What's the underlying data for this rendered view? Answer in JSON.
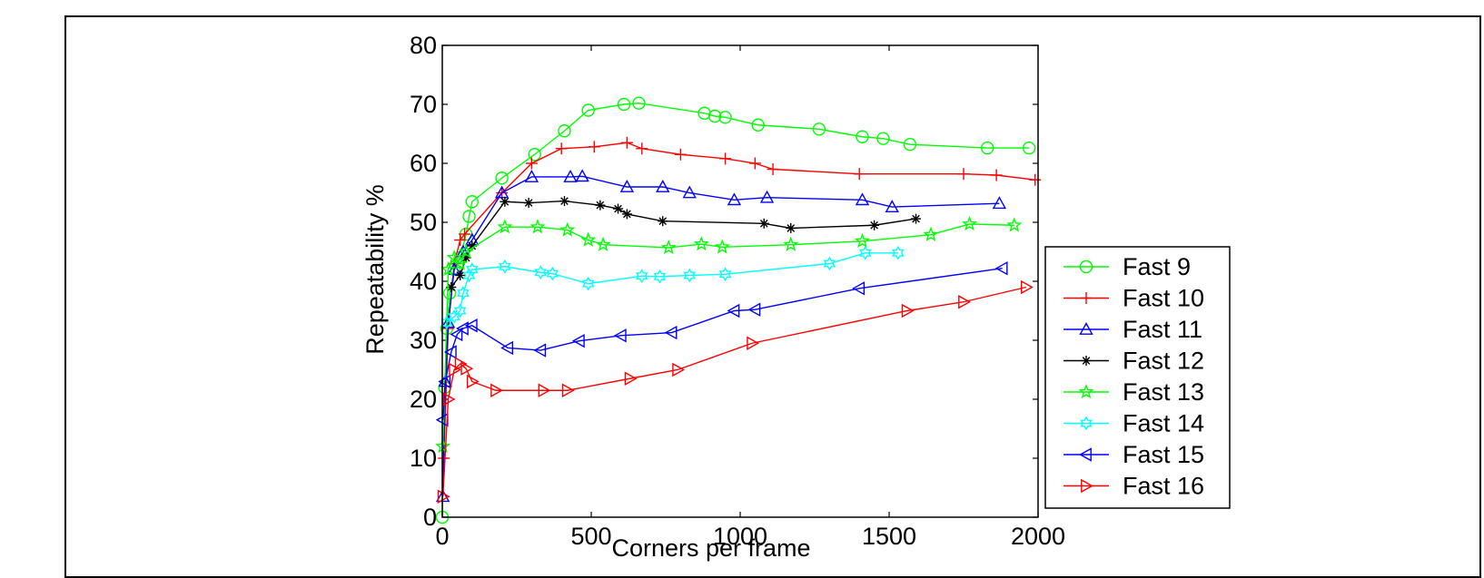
{
  "chart_data": {
    "type": "line",
    "title": "",
    "xlabel": "Corners per frame",
    "ylabel": "Repeatability %",
    "xlim": [
      0,
      2000
    ],
    "ylim": [
      0,
      80
    ],
    "xticks": [
      "0",
      "500",
      "1000",
      "1500",
      "2000"
    ],
    "yticks": [
      "0",
      "10",
      "20",
      "30",
      "40",
      "50",
      "60",
      "70",
      "80"
    ],
    "grid": false,
    "legend_position": "right-middle",
    "series": [
      {
        "name": "Fast 9",
        "color": "#00ff00",
        "marker": "circle",
        "points": [
          [
            0,
            0
          ],
          [
            8,
            22
          ],
          [
            15,
            32
          ],
          [
            25,
            38
          ],
          [
            40,
            42
          ],
          [
            60,
            44
          ],
          [
            80,
            48
          ],
          [
            90,
            51
          ],
          [
            100,
            53.5
          ],
          [
            200,
            57.5
          ],
          [
            310,
            61.5
          ],
          [
            410,
            65.5
          ],
          [
            490,
            69
          ],
          [
            610,
            70
          ],
          [
            660,
            70.2
          ],
          [
            880,
            68.5
          ],
          [
            915,
            68
          ],
          [
            950,
            67.8
          ],
          [
            1060,
            66.5
          ],
          [
            1265,
            65.8
          ],
          [
            1410,
            64.5
          ],
          [
            1480,
            64.2
          ],
          [
            1570,
            63.2
          ],
          [
            1830,
            62.6
          ],
          [
            1970,
            62.6
          ]
        ]
      },
      {
        "name": "Fast 10",
        "color": "#ff0000",
        "marker": "plus",
        "points": [
          [
            5,
            10
          ],
          [
            20,
            32
          ],
          [
            40,
            43
          ],
          [
            60,
            47
          ],
          [
            75,
            48
          ],
          [
            200,
            55
          ],
          [
            300,
            60
          ],
          [
            400,
            62.5
          ],
          [
            510,
            62.8
          ],
          [
            620,
            63.5
          ],
          [
            670,
            62.5
          ],
          [
            800,
            61.5
          ],
          [
            950,
            60.8
          ],
          [
            1050,
            60
          ],
          [
            1110,
            59
          ],
          [
            1400,
            58.2
          ],
          [
            1750,
            58.2
          ],
          [
            1860,
            58
          ],
          [
            1990,
            57.2
          ]
        ]
      },
      {
        "name": "Fast 11",
        "color": "#0000ff",
        "marker": "triangle-up",
        "points": [
          [
            2,
            3.5
          ],
          [
            10,
            23
          ],
          [
            20,
            33
          ],
          [
            40,
            42
          ],
          [
            70,
            45
          ],
          [
            100,
            47
          ],
          [
            200,
            55
          ],
          [
            300,
            57.7
          ],
          [
            430,
            57.7
          ],
          [
            470,
            57.8
          ],
          [
            620,
            56
          ],
          [
            740,
            56
          ],
          [
            830,
            55
          ],
          [
            980,
            53.8
          ],
          [
            1090,
            54.2
          ],
          [
            1410,
            53.8
          ],
          [
            1510,
            52.6
          ],
          [
            1870,
            53.2
          ]
        ]
      },
      {
        "name": "Fast 12",
        "color": "#000000",
        "marker": "star",
        "points": [
          [
            30,
            39
          ],
          [
            60,
            41
          ],
          [
            80,
            44
          ],
          [
            100,
            46
          ],
          [
            210,
            53.5
          ],
          [
            290,
            53.3
          ],
          [
            410,
            53.6
          ],
          [
            530,
            52.9
          ],
          [
            590,
            52.3
          ],
          [
            620,
            51.4
          ],
          [
            740,
            50.2
          ],
          [
            1080,
            49.8
          ],
          [
            1170,
            49
          ],
          [
            1450,
            49.5
          ],
          [
            1590,
            50.6
          ]
        ]
      },
      {
        "name": "Fast 13",
        "color": "#00ff00",
        "marker": "pentagram",
        "points": [
          [
            2,
            12
          ],
          [
            20,
            42
          ],
          [
            40,
            44
          ],
          [
            60,
            43
          ],
          [
            80,
            45
          ],
          [
            210,
            49.2
          ],
          [
            320,
            49.2
          ],
          [
            420,
            48.7
          ],
          [
            490,
            47
          ],
          [
            540,
            46.2
          ],
          [
            760,
            45.7
          ],
          [
            870,
            46.3
          ],
          [
            940,
            45.8
          ],
          [
            1170,
            46.2
          ],
          [
            1410,
            46.8
          ],
          [
            1640,
            47.9
          ],
          [
            1770,
            49.7
          ],
          [
            1920,
            49.5
          ]
        ]
      },
      {
        "name": "Fast 14",
        "color": "#00ffff",
        "marker": "hexagram",
        "points": [
          [
            15,
            33
          ],
          [
            40,
            34
          ],
          [
            60,
            35
          ],
          [
            70,
            38
          ],
          [
            90,
            41
          ],
          [
            100,
            42
          ],
          [
            210,
            42.5
          ],
          [
            330,
            41.5
          ],
          [
            370,
            41.3
          ],
          [
            490,
            39.6
          ],
          [
            670,
            40.9
          ],
          [
            730,
            40.8
          ],
          [
            830,
            41
          ],
          [
            950,
            41.2
          ],
          [
            1300,
            43
          ],
          [
            1420,
            44.8
          ],
          [
            1530,
            44.8
          ]
        ]
      },
      {
        "name": "Fast 15",
        "color": "#0000ff",
        "marker": "triangle-left",
        "points": [
          [
            2,
            16.5
          ],
          [
            10,
            23
          ],
          [
            30,
            28
          ],
          [
            50,
            31
          ],
          [
            70,
            32
          ],
          [
            100,
            32.5
          ],
          [
            220,
            28.7
          ],
          [
            330,
            28.3
          ],
          [
            460,
            29.9
          ],
          [
            600,
            30.8
          ],
          [
            770,
            31.3
          ],
          [
            980,
            35
          ],
          [
            1050,
            35.2
          ],
          [
            1400,
            38.8
          ],
          [
            1880,
            42.2
          ]
        ]
      },
      {
        "name": "Fast 16",
        "color": "#ff0000",
        "marker": "triangle-right",
        "points": [
          [
            2,
            3.5
          ],
          [
            20,
            20
          ],
          [
            40,
            25
          ],
          [
            60,
            26
          ],
          [
            80,
            25.2
          ],
          [
            100,
            23
          ],
          [
            180,
            21.5
          ],
          [
            340,
            21.5
          ],
          [
            420,
            21.5
          ],
          [
            630,
            23.5
          ],
          [
            790,
            25
          ],
          [
            1040,
            29.5
          ],
          [
            1560,
            35
          ],
          [
            1750,
            36.5
          ],
          [
            1960,
            39
          ]
        ]
      }
    ]
  }
}
